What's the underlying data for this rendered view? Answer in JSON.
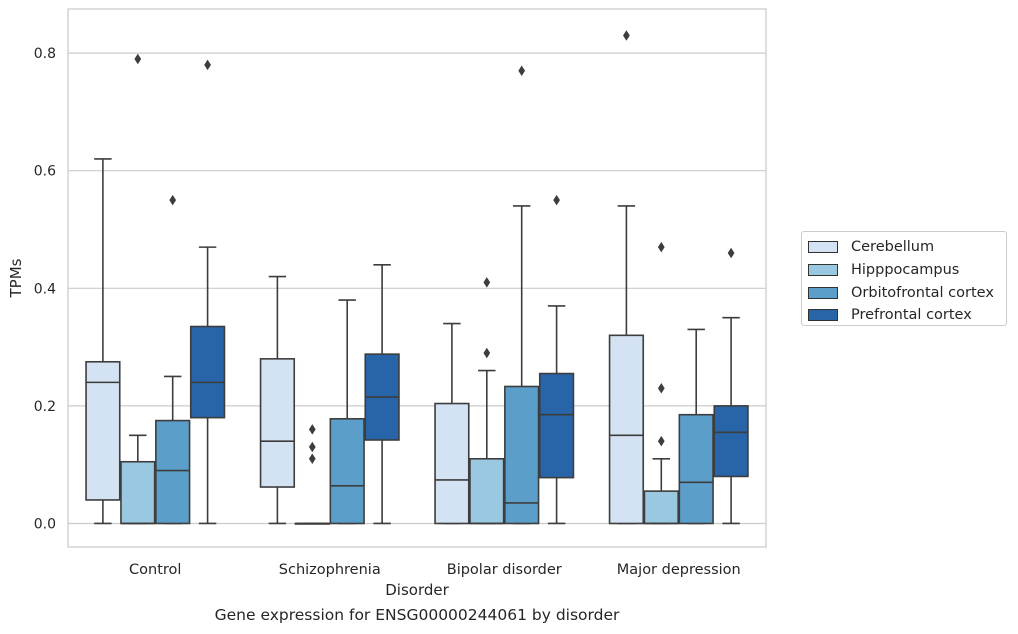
{
  "caption": "Gene expression for ENSG00000244061 by disorder",
  "chart_data": {
    "type": "box",
    "title": "",
    "xlabel": "Disorder",
    "ylabel": "TPMs",
    "ylim": [
      -0.04,
      0.875
    ],
    "yticks": [
      0.0,
      0.2,
      0.4,
      0.6,
      0.8
    ],
    "ytick_labels": [
      "0.0",
      "0.2",
      "0.4",
      "0.6",
      "0.8"
    ],
    "grid": "horizontal",
    "legend_position": "right",
    "categories": [
      "Control",
      "Schizophrenia",
      "Bipolar disorder",
      "Major depression"
    ],
    "series": [
      {
        "name": "Cerebellum",
        "color": "#d3e3f3",
        "boxes": [
          {
            "q1": 0.04,
            "median": 0.24,
            "q3": 0.275,
            "whisker_low": 0.0,
            "whisker_high": 0.62,
            "outliers": []
          },
          {
            "q1": 0.062,
            "median": 0.14,
            "q3": 0.28,
            "whisker_low": 0.0,
            "whisker_high": 0.42,
            "outliers": []
          },
          {
            "q1": 0.0,
            "median": 0.074,
            "q3": 0.204,
            "whisker_low": 0.0,
            "whisker_high": 0.34,
            "outliers": []
          },
          {
            "q1": 0.0,
            "median": 0.15,
            "q3": 0.32,
            "whisker_low": 0.0,
            "whisker_high": 0.54,
            "outliers": [
              0.83
            ]
          }
        ]
      },
      {
        "name": "Hipppocampus",
        "color": "#9ac8e0",
        "boxes": [
          {
            "q1": 0.0,
            "median": 0.0,
            "q3": 0.105,
            "whisker_low": 0.0,
            "whisker_high": 0.15,
            "outliers": [
              0.79
            ]
          },
          {
            "q1": 0.0,
            "median": 0.0,
            "q3": 0.0,
            "whisker_low": 0.0,
            "whisker_high": 0.0,
            "outliers": [
              0.11,
              0.13,
              0.16
            ]
          },
          {
            "q1": 0.0,
            "median": 0.0,
            "q3": 0.11,
            "whisker_low": 0.0,
            "whisker_high": 0.26,
            "outliers": [
              0.29,
              0.41
            ]
          },
          {
            "q1": 0.0,
            "median": 0.0,
            "q3": 0.055,
            "whisker_low": 0.0,
            "whisker_high": 0.11,
            "outliers": [
              0.14,
              0.23,
              0.47
            ]
          }
        ]
      },
      {
        "name": "Orbitofrontal cortex",
        "color": "#5a9ec9",
        "boxes": [
          {
            "q1": 0.0,
            "median": 0.09,
            "q3": 0.175,
            "whisker_low": 0.0,
            "whisker_high": 0.25,
            "outliers": [
              0.55
            ]
          },
          {
            "q1": 0.0,
            "median": 0.064,
            "q3": 0.178,
            "whisker_low": 0.0,
            "whisker_high": 0.38,
            "outliers": []
          },
          {
            "q1": 0.0,
            "median": 0.035,
            "q3": 0.233,
            "whisker_low": 0.0,
            "whisker_high": 0.54,
            "outliers": [
              0.77
            ]
          },
          {
            "q1": 0.0,
            "median": 0.07,
            "q3": 0.185,
            "whisker_low": 0.0,
            "whisker_high": 0.33,
            "outliers": []
          }
        ]
      },
      {
        "name": "Prefrontal cortex",
        "color": "#2865a8",
        "boxes": [
          {
            "q1": 0.18,
            "median": 0.24,
            "q3": 0.335,
            "whisker_low": 0.0,
            "whisker_high": 0.47,
            "outliers": [
              0.78
            ]
          },
          {
            "q1": 0.142,
            "median": 0.215,
            "q3": 0.288,
            "whisker_low": 0.0,
            "whisker_high": 0.44,
            "outliers": []
          },
          {
            "q1": 0.078,
            "median": 0.185,
            "q3": 0.255,
            "whisker_low": 0.0,
            "whisker_high": 0.37,
            "outliers": [
              0.55
            ]
          },
          {
            "q1": 0.08,
            "median": 0.155,
            "q3": 0.2,
            "whisker_low": 0.0,
            "whisker_high": 0.35,
            "outliers": [
              0.46
            ]
          }
        ]
      }
    ]
  }
}
